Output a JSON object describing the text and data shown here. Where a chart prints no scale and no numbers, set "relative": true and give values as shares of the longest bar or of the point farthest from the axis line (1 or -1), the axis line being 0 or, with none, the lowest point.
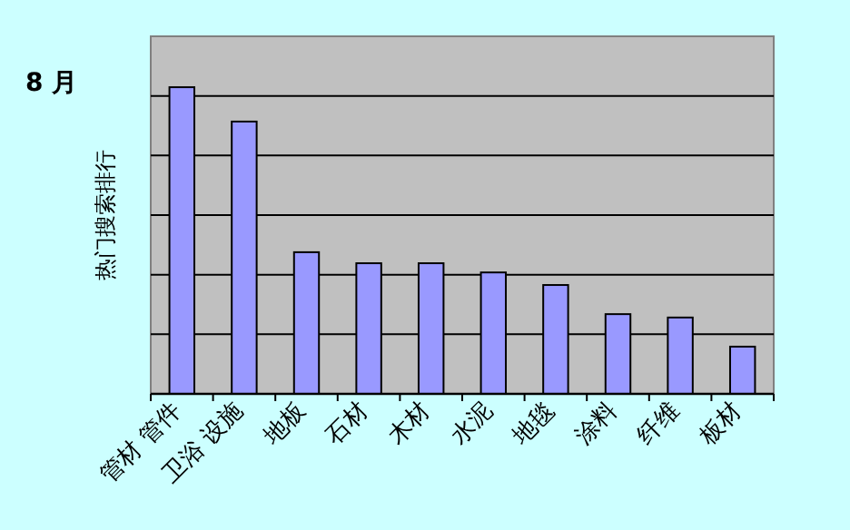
{
  "chart_data": {
    "type": "bar",
    "title": "8 月",
    "ylabel": "热门搜索排行",
    "categories": [
      "管材 管件",
      "卫浴 设施",
      "地板",
      "石材",
      "木材",
      "水泥",
      "地毯",
      "涂料",
      "纤维",
      "板材"
    ],
    "values": [
      1,
      0.888,
      0.462,
      0.426,
      0.426,
      0.396,
      0.355,
      0.26,
      0.249,
      0.154
    ],
    "color": "#9999ff",
    "relative": true,
    "grid": "y"
  }
}
